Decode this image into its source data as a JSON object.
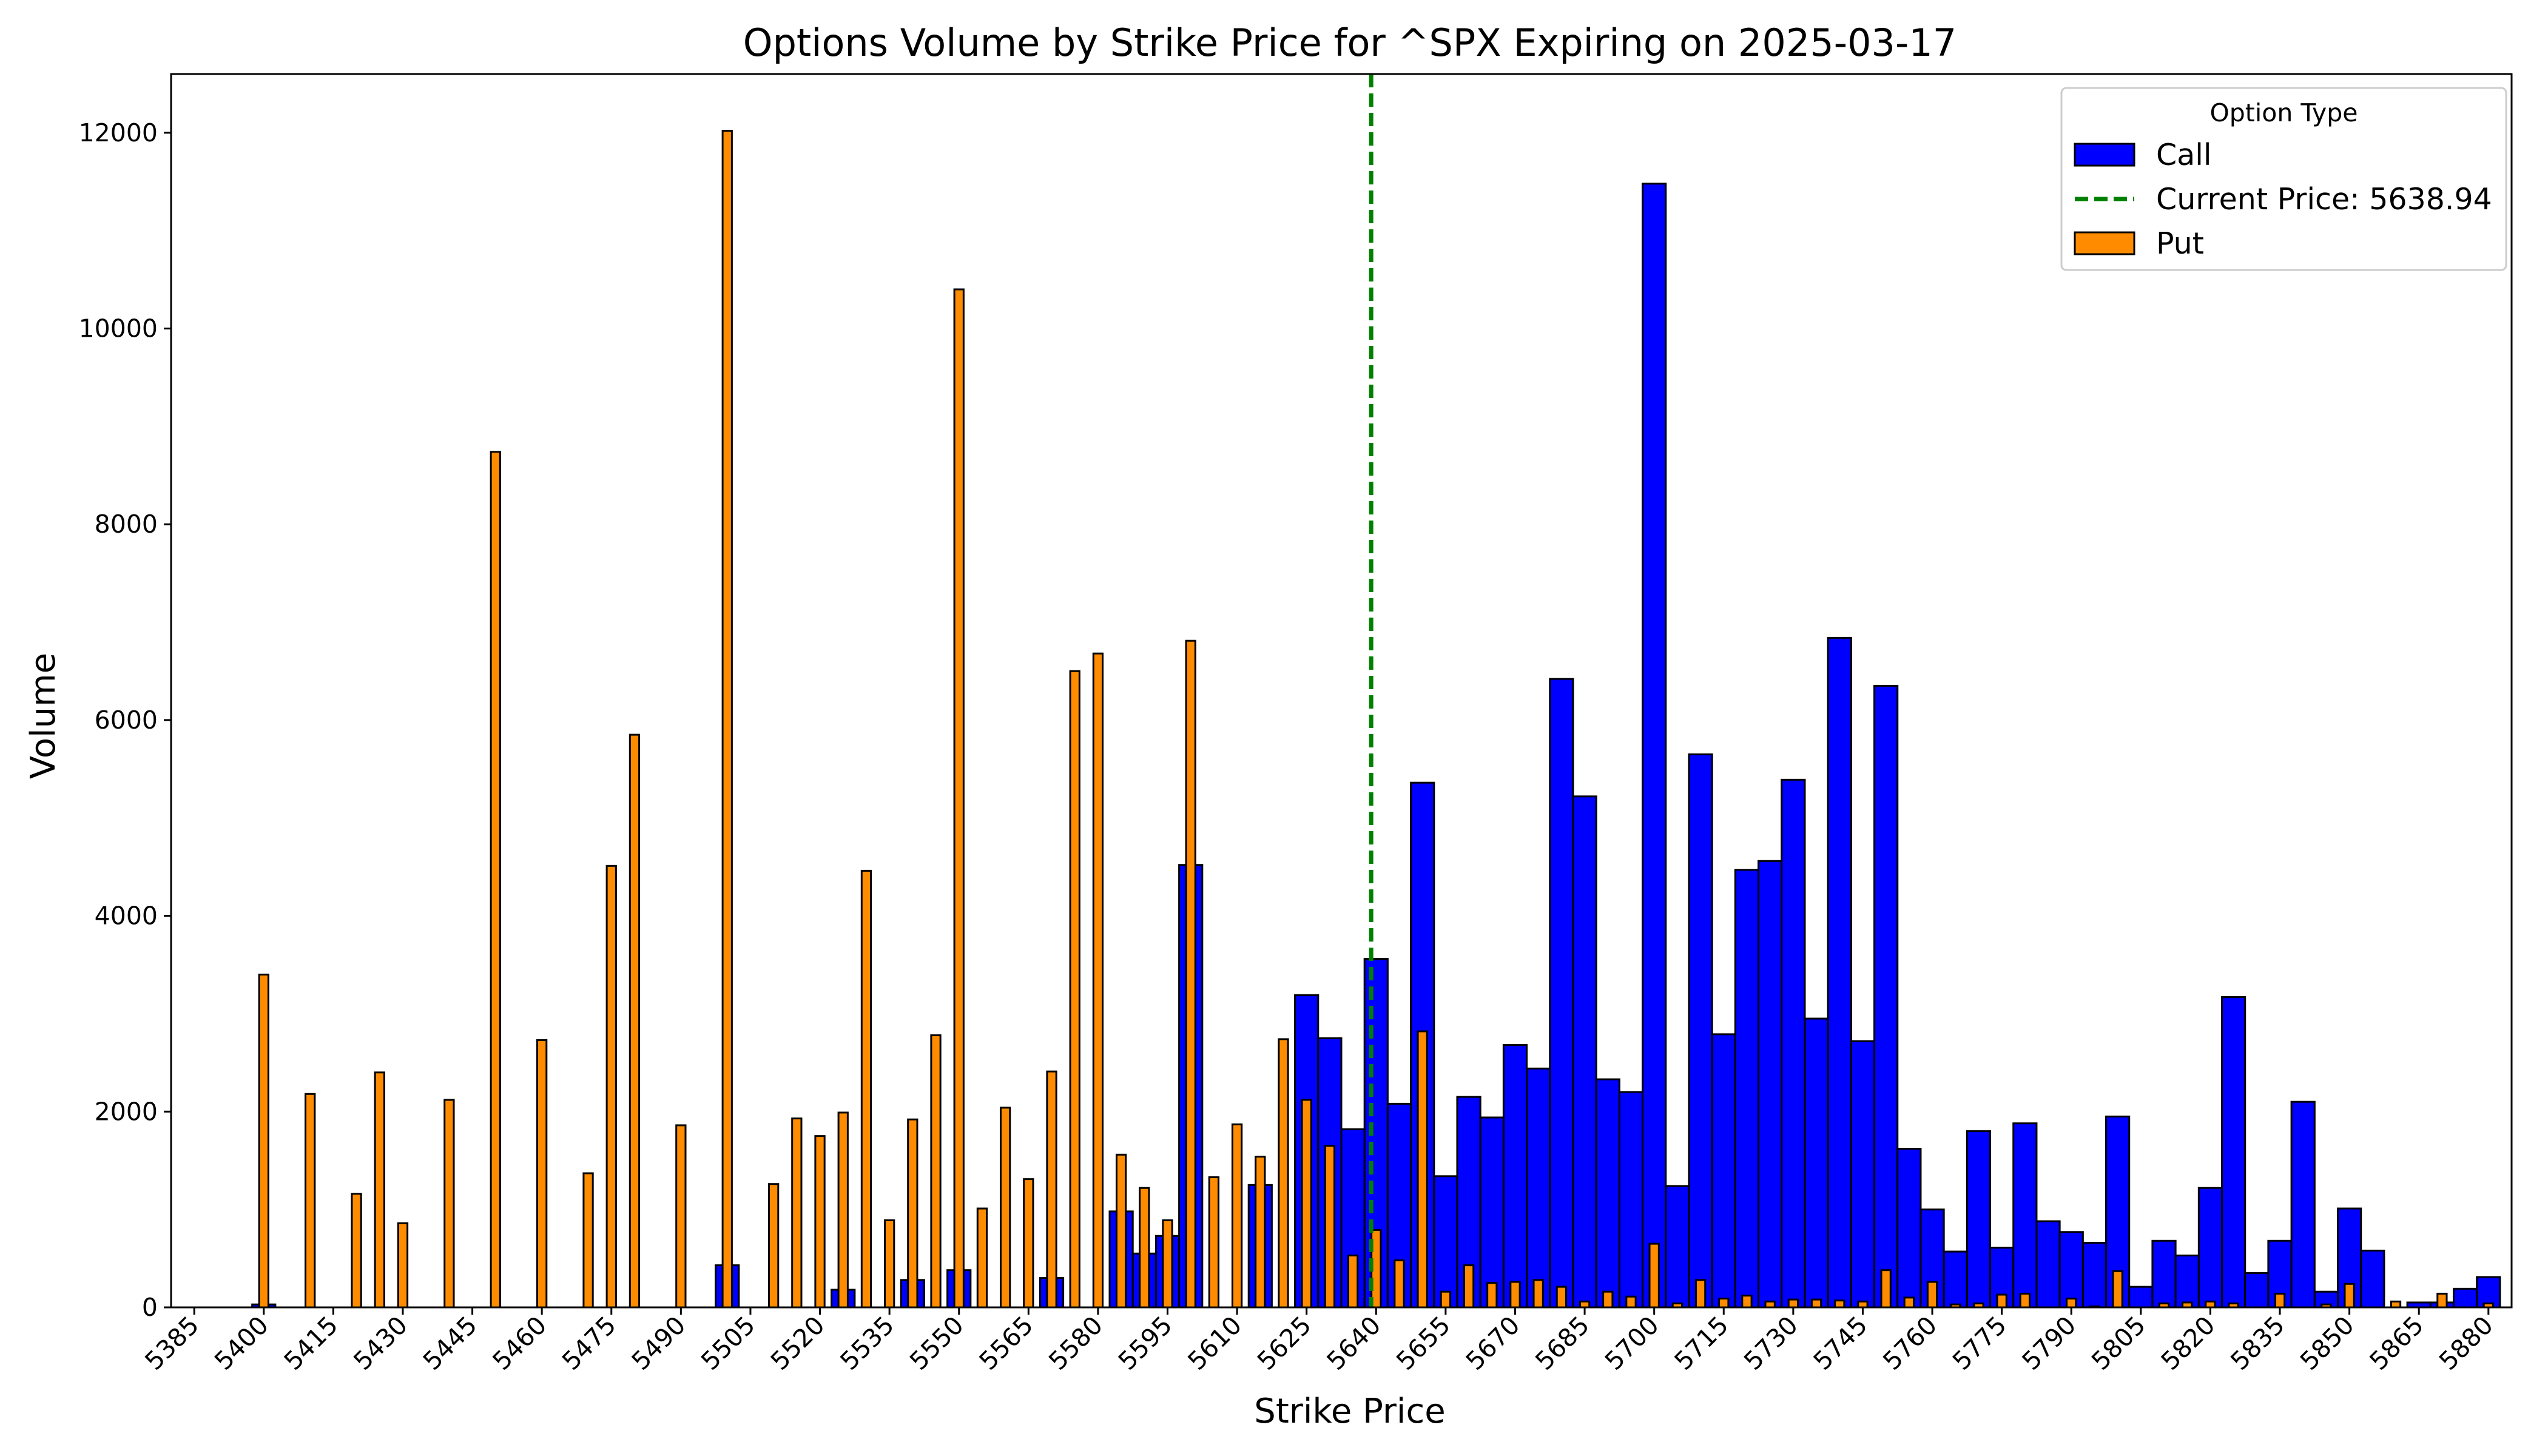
{
  "chart_data": {
    "type": "bar",
    "title": "Options Volume by Strike Price for ^SPX Expiring on 2025-03-17",
    "xlabel": "Strike Price",
    "ylabel": "Volume",
    "xlim": [
      5380,
      5885
    ],
    "ylim": [
      0,
      12600
    ],
    "x_ticks": [
      5385,
      5400,
      5415,
      5430,
      5445,
      5460,
      5475,
      5490,
      5505,
      5520,
      5535,
      5550,
      5565,
      5580,
      5595,
      5610,
      5625,
      5640,
      5655,
      5670,
      5685,
      5700,
      5715,
      5730,
      5745,
      5760,
      5775,
      5790,
      5805,
      5820,
      5835,
      5850,
      5865,
      5880
    ],
    "y_ticks": [
      0,
      2000,
      4000,
      6000,
      8000,
      10000,
      12000
    ],
    "legend": {
      "title": "Option Type",
      "position": "top-right"
    },
    "current_price": {
      "value": 5638.94,
      "label": "Current Price: 5638.94",
      "color": "#008000"
    },
    "series": [
      {
        "name": "Call",
        "color": "#0000ff",
        "points": [
          [
            5400,
            30
          ],
          [
            5500,
            430
          ],
          [
            5525,
            180
          ],
          [
            5540,
            280
          ],
          [
            5550,
            380
          ],
          [
            5570,
            300
          ],
          [
            5585,
            980
          ],
          [
            5590,
            550
          ],
          [
            5595,
            730
          ],
          [
            5600,
            4520
          ],
          [
            5615,
            1250
          ],
          [
            5625,
            3190
          ],
          [
            5630,
            2750
          ],
          [
            5635,
            1820
          ],
          [
            5640,
            3560
          ],
          [
            5645,
            2080
          ],
          [
            5650,
            5360
          ],
          [
            5655,
            1340
          ],
          [
            5660,
            2150
          ],
          [
            5665,
            1940
          ],
          [
            5670,
            2680
          ],
          [
            5675,
            2440
          ],
          [
            5680,
            6420
          ],
          [
            5685,
            5220
          ],
          [
            5690,
            2330
          ],
          [
            5695,
            2200
          ],
          [
            5700,
            11480
          ],
          [
            5705,
            1240
          ],
          [
            5710,
            5650
          ],
          [
            5715,
            2790
          ],
          [
            5720,
            4470
          ],
          [
            5725,
            4560
          ],
          [
            5730,
            5390
          ],
          [
            5735,
            2950
          ],
          [
            5740,
            6840
          ],
          [
            5745,
            2720
          ],
          [
            5750,
            6350
          ],
          [
            5755,
            1620
          ],
          [
            5760,
            1000
          ],
          [
            5765,
            570
          ],
          [
            5770,
            1800
          ],
          [
            5775,
            610
          ],
          [
            5780,
            1880
          ],
          [
            5785,
            880
          ],
          [
            5790,
            770
          ],
          [
            5795,
            660
          ],
          [
            5800,
            1950
          ],
          [
            5805,
            210
          ],
          [
            5810,
            680
          ],
          [
            5815,
            530
          ],
          [
            5820,
            1220
          ],
          [
            5825,
            3170
          ],
          [
            5830,
            350
          ],
          [
            5835,
            680
          ],
          [
            5840,
            2100
          ],
          [
            5845,
            160
          ],
          [
            5850,
            1010
          ],
          [
            5855,
            580
          ],
          [
            5865,
            50
          ],
          [
            5870,
            50
          ],
          [
            5875,
            190
          ],
          [
            5880,
            310
          ]
        ]
      },
      {
        "name": "Put",
        "color": "#ff8c00",
        "points": [
          [
            5400,
            3400
          ],
          [
            5410,
            2180
          ],
          [
            5420,
            1160
          ],
          [
            5425,
            2400
          ],
          [
            5430,
            860
          ],
          [
            5440,
            2120
          ],
          [
            5450,
            8740
          ],
          [
            5460,
            2730
          ],
          [
            5470,
            1370
          ],
          [
            5475,
            4510
          ],
          [
            5480,
            5850
          ],
          [
            5490,
            1860
          ],
          [
            5500,
            12020
          ],
          [
            5510,
            1260
          ],
          [
            5515,
            1930
          ],
          [
            5520,
            1750
          ],
          [
            5525,
            1990
          ],
          [
            5530,
            4460
          ],
          [
            5535,
            890
          ],
          [
            5540,
            1920
          ],
          [
            5545,
            2780
          ],
          [
            5550,
            10400
          ],
          [
            5555,
            1010
          ],
          [
            5560,
            2040
          ],
          [
            5565,
            1310
          ],
          [
            5570,
            2410
          ],
          [
            5575,
            6500
          ],
          [
            5580,
            6680
          ],
          [
            5585,
            1560
          ],
          [
            5590,
            1220
          ],
          [
            5595,
            890
          ],
          [
            5600,
            6810
          ],
          [
            5605,
            1330
          ],
          [
            5610,
            1870
          ],
          [
            5615,
            1540
          ],
          [
            5620,
            2740
          ],
          [
            5625,
            2120
          ],
          [
            5630,
            1650
          ],
          [
            5635,
            530
          ],
          [
            5640,
            790
          ],
          [
            5645,
            480
          ],
          [
            5650,
            2820
          ],
          [
            5655,
            160
          ],
          [
            5660,
            430
          ],
          [
            5665,
            250
          ],
          [
            5670,
            260
          ],
          [
            5675,
            280
          ],
          [
            5680,
            210
          ],
          [
            5685,
            60
          ],
          [
            5690,
            160
          ],
          [
            5695,
            110
          ],
          [
            5700,
            650
          ],
          [
            5705,
            40
          ],
          [
            5710,
            280
          ],
          [
            5715,
            90
          ],
          [
            5720,
            120
          ],
          [
            5725,
            60
          ],
          [
            5730,
            80
          ],
          [
            5735,
            80
          ],
          [
            5740,
            70
          ],
          [
            5745,
            60
          ],
          [
            5750,
            380
          ],
          [
            5755,
            100
          ],
          [
            5760,
            260
          ],
          [
            5765,
            30
          ],
          [
            5770,
            40
          ],
          [
            5775,
            130
          ],
          [
            5780,
            140
          ],
          [
            5790,
            90
          ],
          [
            5795,
            10
          ],
          [
            5800,
            370
          ],
          [
            5810,
            40
          ],
          [
            5815,
            50
          ],
          [
            5820,
            60
          ],
          [
            5825,
            40
          ],
          [
            5835,
            140
          ],
          [
            5845,
            30
          ],
          [
            5850,
            240
          ],
          [
            5860,
            60
          ],
          [
            5870,
            140
          ],
          [
            5880,
            40
          ]
        ]
      }
    ]
  }
}
